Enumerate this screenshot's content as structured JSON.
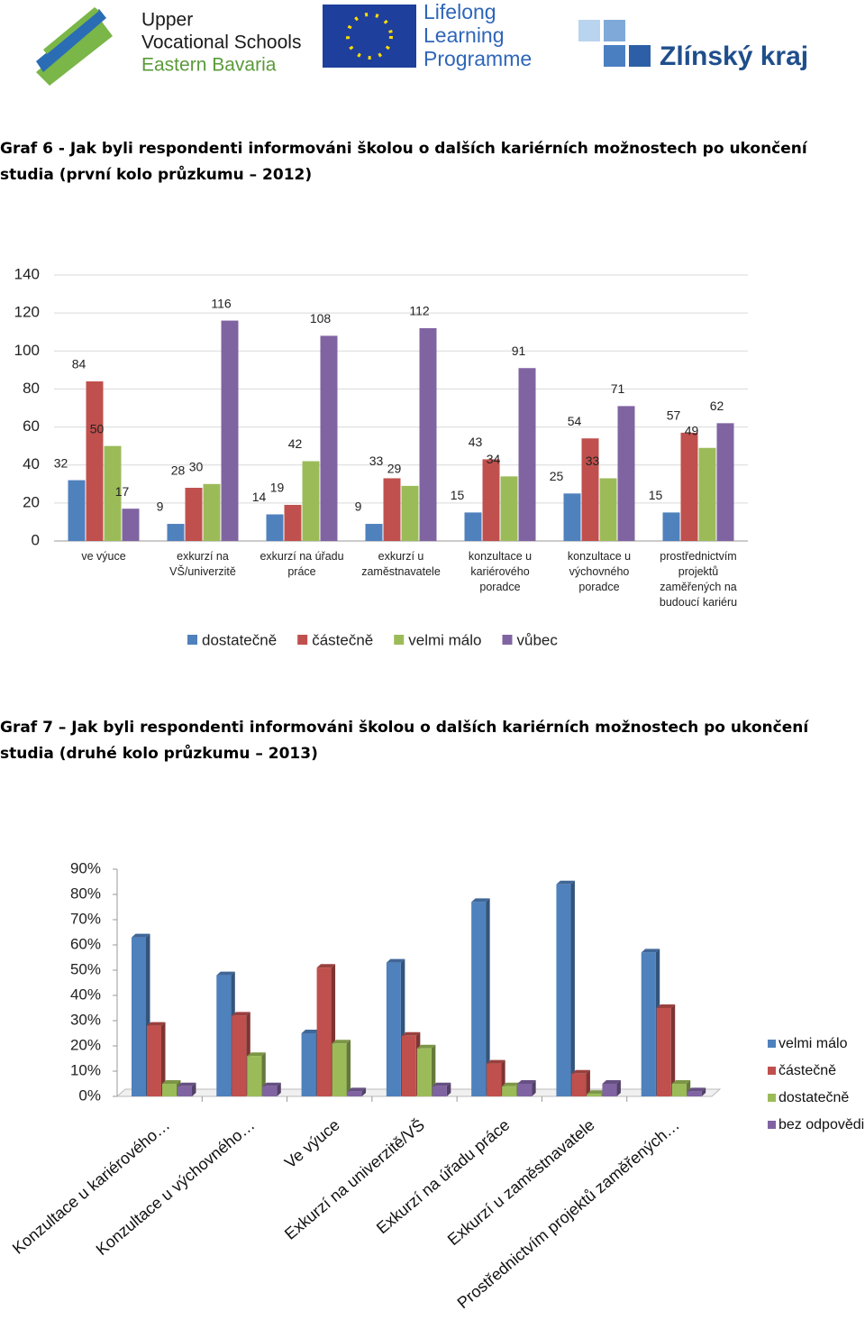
{
  "header": {
    "school_lines": [
      "Upper",
      "Vocational Schools",
      "Eastern Bavaria"
    ],
    "llp_lines": [
      "Lifelong",
      "Learning",
      "Programme"
    ],
    "region": "Zlínský kraj"
  },
  "chart_data": [
    {
      "type": "bar",
      "title": "Graf 6 - Jak byli respondenti informováni školou o dalších kariérních možnostech po ukončení studia (první kolo průzkumu – 2012)",
      "categories": [
        "ve výuce",
        "exkurzí na VŠ/univerzitě",
        "exkurzí na úřadu práce",
        "exkurzí u zaměstnavatele",
        "konzultace u kariérového poradce",
        "konzultace u výchovného poradce",
        "prostřednictvím projektů zaměřených na budoucí kariéru"
      ],
      "series": [
        {
          "name": "dostatečně",
          "color": "#4f81bd",
          "values": [
            32,
            9,
            14,
            9,
            15,
            25,
            15
          ]
        },
        {
          "name": "částečně",
          "color": "#c0504d",
          "values": [
            84,
            28,
            19,
            33,
            43,
            54,
            57
          ]
        },
        {
          "name": "velmi málo",
          "color": "#9bbb59",
          "values": [
            50,
            30,
            42,
            29,
            34,
            33,
            49
          ]
        },
        {
          "name": "vůbec",
          "color": "#8064a2",
          "values": [
            17,
            116,
            108,
            112,
            91,
            71,
            62
          ]
        }
      ],
      "ylim": [
        0,
        140
      ],
      "yticks": [
        0,
        20,
        40,
        60,
        80,
        100,
        120,
        140
      ],
      "grid": true,
      "legend": "bottom"
    },
    {
      "type": "bar3d",
      "title": "Graf 7 – Jak byli respondenti informováni školou o dalších kariérních možnostech po ukončení studia (druhé kolo průzkumu – 2013)",
      "categories": [
        "Konzultace u kariérového…",
        "Konzultace u výchovného…",
        "Ve výuce",
        "Exkurzí na univerzitě/VŠ",
        "Exkurzí na úřadu práce",
        "Exkurzí u zaměstnavatele",
        "Prostřednictvím projektů zaměřených…"
      ],
      "series": [
        {
          "name": "velmi málo",
          "color": "#4f81bd",
          "values": [
            63,
            48,
            25,
            53,
            77,
            84,
            57
          ]
        },
        {
          "name": "částečně",
          "color": "#c0504d",
          "values": [
            28,
            32,
            51,
            24,
            13,
            9,
            35
          ]
        },
        {
          "name": "dostatečně",
          "color": "#9bbb59",
          "values": [
            5,
            16,
            21,
            19,
            4,
            1,
            5
          ]
        },
        {
          "name": "bez odpovědi",
          "color": "#8064a2",
          "values": [
            4,
            4,
            2,
            4,
            5,
            5,
            2
          ]
        }
      ],
      "ylim": [
        0,
        90
      ],
      "yticks": [
        {
          "value": 0,
          "label": "0%"
        },
        {
          "value": 10,
          "label": "10%"
        },
        {
          "value": 20,
          "label": "20%"
        },
        {
          "value": 30,
          "label": "30%"
        },
        {
          "value": 40,
          "label": "40%"
        },
        {
          "value": 50,
          "label": "50%"
        },
        {
          "value": 60,
          "label": "60%"
        },
        {
          "value": 70,
          "label": "70%"
        },
        {
          "value": 80,
          "label": "80%"
        },
        {
          "value": 90,
          "label": "90%"
        }
      ],
      "grid": false,
      "legend": "right"
    }
  ]
}
